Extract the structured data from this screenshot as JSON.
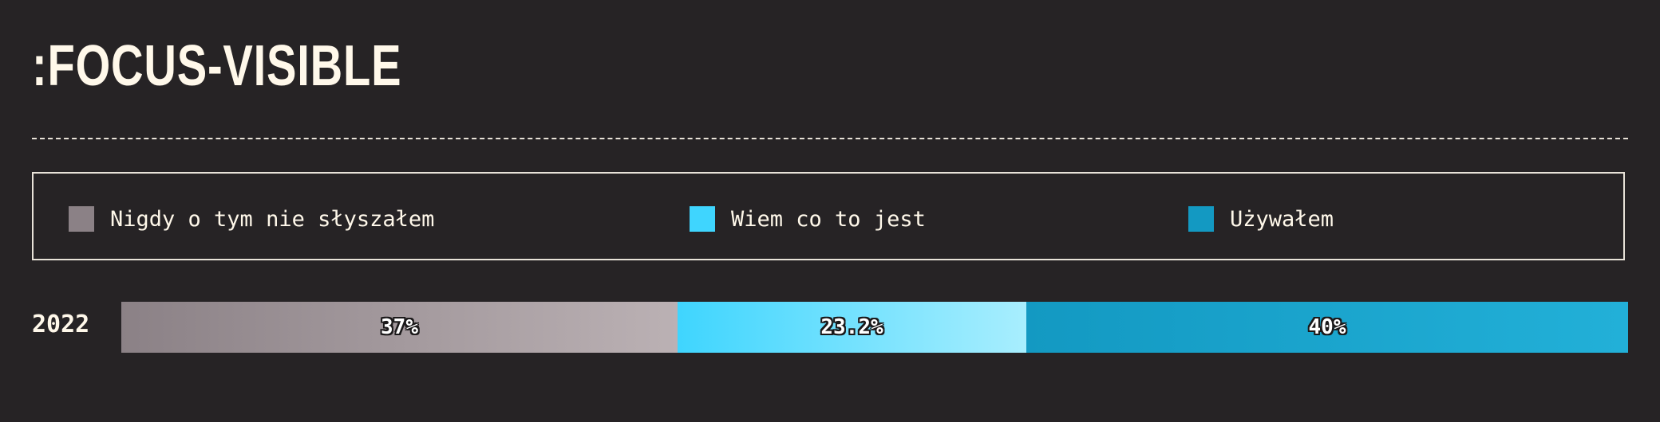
{
  "chart_data": {
    "type": "bar",
    "orientation": "horizontal",
    "stacked": true,
    "title": ":FOCUS-VISIBLE",
    "categories": [
      "2022"
    ],
    "series": [
      {
        "name": "Nigdy o tym nie słyszałem",
        "values": [
          37
        ],
        "label": "37%",
        "color_start": "#8b8186",
        "color_end": "#bbb1b4"
      },
      {
        "name": "Wiem co to jest",
        "values": [
          23.2
        ],
        "label": "23.2%",
        "color_start": "#3fd5fe",
        "color_end": "#a8eefe"
      },
      {
        "name": "Używałem",
        "values": [
          40
        ],
        "label": "40%",
        "color_start": "#1399c2",
        "color_end": "#22b0d8"
      }
    ],
    "legend_position": "top",
    "grid": false
  }
}
